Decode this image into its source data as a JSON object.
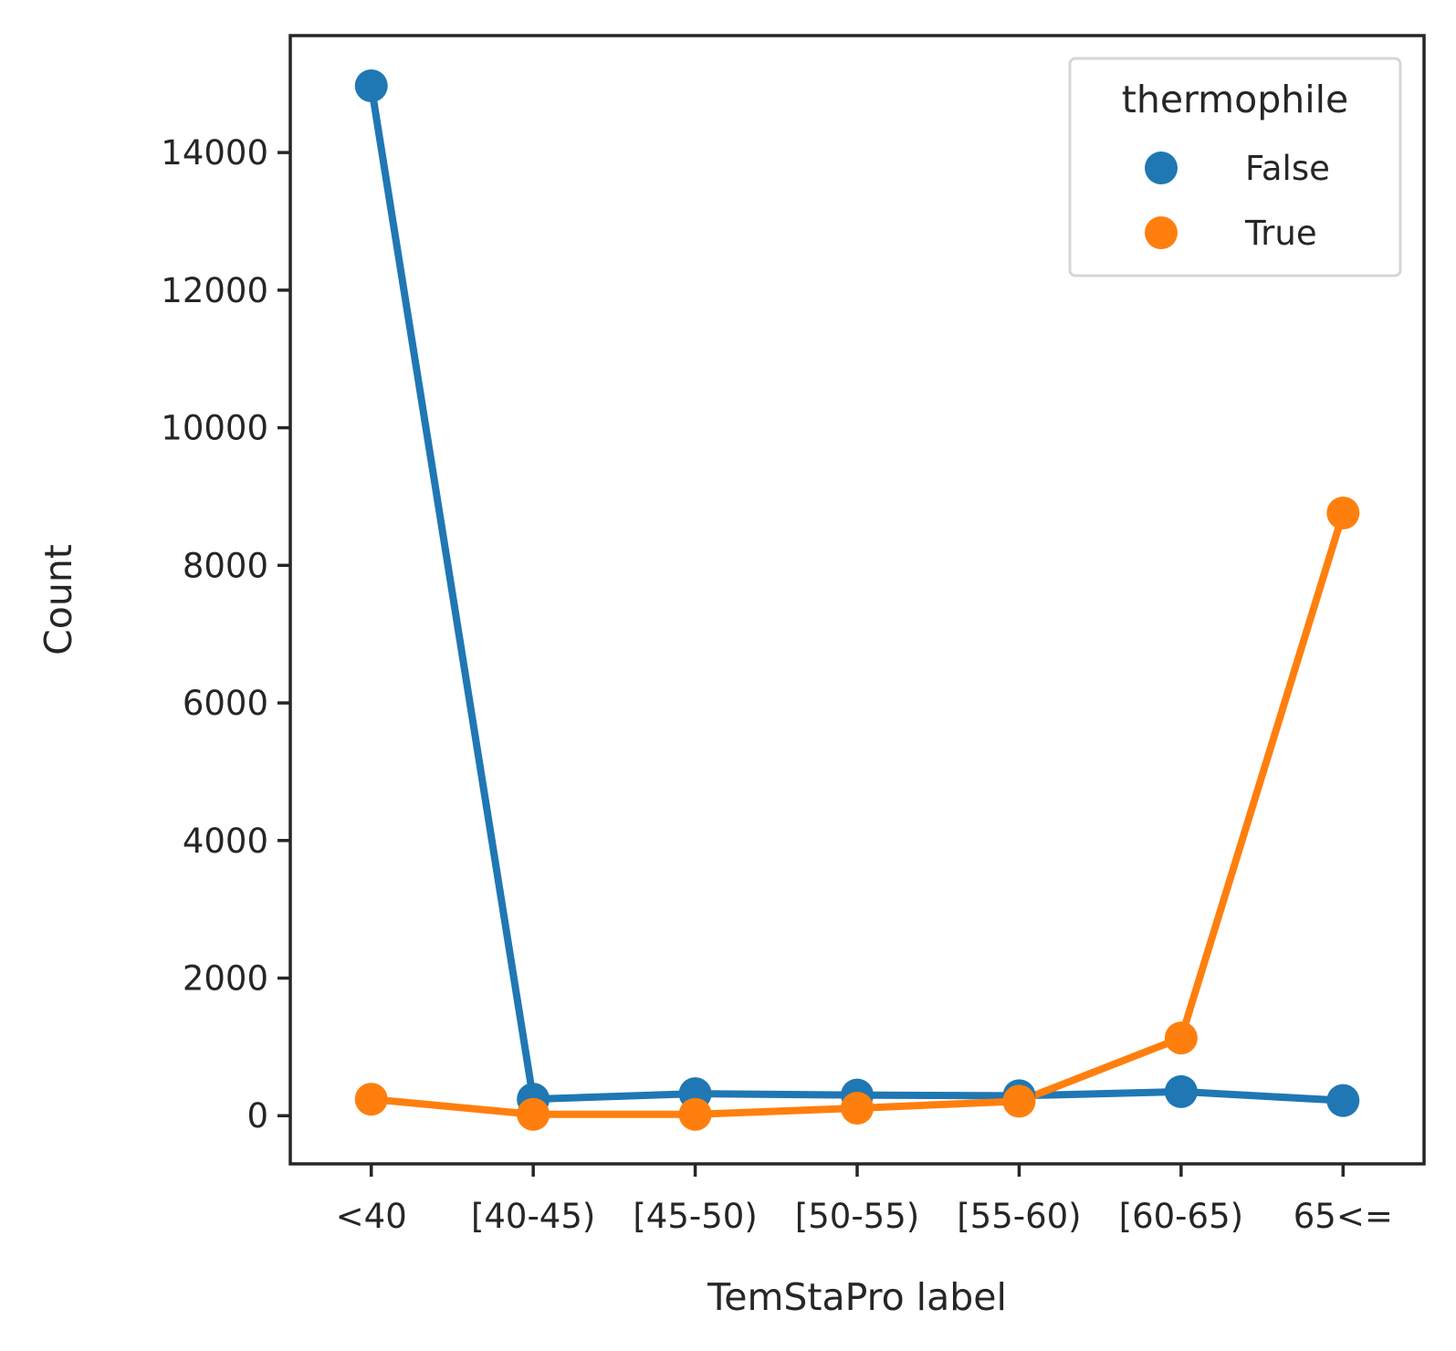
{
  "chart_data": {
    "type": "line",
    "title": "",
    "xlabel": "TemStaPro label",
    "ylabel": "Count",
    "categories": [
      "<40",
      "[40-45)",
      "[45-50)",
      "[50-55)",
      "[55-60)",
      "[60-65)",
      "65<="
    ],
    "ylim": [
      -700,
      15700
    ],
    "yticks": [
      0,
      2000,
      4000,
      6000,
      8000,
      10000,
      12000,
      14000
    ],
    "ytick_labels": [
      "0",
      "2000",
      "4000",
      "6000",
      "8000",
      "10000",
      "12000",
      "14000"
    ],
    "grid": false,
    "legend": {
      "title": "thermophile",
      "placement": "top-right"
    },
    "series": [
      {
        "name": "False",
        "color": "#1f77b4",
        "values": [
          14970,
          240,
          320,
          300,
          290,
          350,
          220
        ]
      },
      {
        "name": "True",
        "color": "#ff7f0e",
        "values": [
          240,
          20,
          20,
          110,
          210,
          1130,
          8760
        ]
      }
    ]
  }
}
